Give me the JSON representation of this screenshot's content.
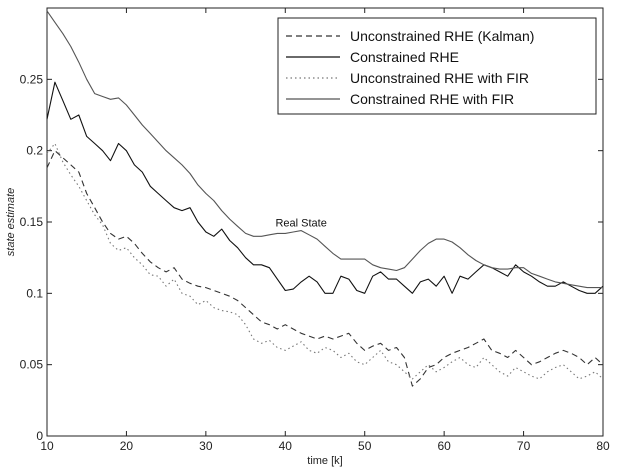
{
  "chart_data": {
    "type": "line",
    "xlabel": "time [k]",
    "ylabel": "state estimate",
    "xlim": [
      10,
      80
    ],
    "ylim": [
      0,
      0.3
    ],
    "xticks": [
      "10",
      "20",
      "30",
      "40",
      "50",
      "60",
      "70",
      "80"
    ],
    "yticks": [
      "0",
      "0.05",
      "0.1",
      "0.15",
      "0.2",
      "0.25"
    ],
    "grid": false,
    "legend_position": "top-right",
    "annotation": {
      "text": "Real State",
      "x": 42,
      "y": 0.147
    },
    "series": [
      {
        "name": "Unconstrained RHE (Kalman)",
        "style": "dashed",
        "color": "#333333",
        "x": [
          10,
          11,
          12,
          13,
          14,
          15,
          16,
          17,
          18,
          19,
          20,
          21,
          22,
          23,
          24,
          25,
          26,
          27,
          28,
          29,
          30,
          31,
          32,
          33,
          34,
          35,
          36,
          37,
          38,
          39,
          40,
          41,
          42,
          43,
          44,
          45,
          46,
          47,
          48,
          49,
          50,
          51,
          52,
          53,
          54,
          55,
          56,
          57,
          58,
          59,
          60,
          61,
          62,
          63,
          64,
          65,
          66,
          67,
          68,
          69,
          70,
          71,
          72,
          73,
          74,
          75,
          76,
          77,
          78,
          79,
          80
        ],
        "y": [
          0.188,
          0.2,
          0.195,
          0.19,
          0.185,
          0.17,
          0.16,
          0.15,
          0.142,
          0.138,
          0.14,
          0.135,
          0.128,
          0.122,
          0.118,
          0.115,
          0.118,
          0.11,
          0.107,
          0.105,
          0.104,
          0.102,
          0.1,
          0.098,
          0.095,
          0.09,
          0.085,
          0.08,
          0.078,
          0.075,
          0.078,
          0.075,
          0.072,
          0.07,
          0.068,
          0.07,
          0.068,
          0.07,
          0.072,
          0.065,
          0.06,
          0.063,
          0.065,
          0.06,
          0.062,
          0.055,
          0.035,
          0.04,
          0.048,
          0.05,
          0.055,
          0.058,
          0.06,
          0.062,
          0.065,
          0.068,
          0.06,
          0.058,
          0.055,
          0.06,
          0.055,
          0.05,
          0.052,
          0.055,
          0.058,
          0.06,
          0.058,
          0.055,
          0.05,
          0.055,
          0.05
        ]
      },
      {
        "name": "Constrained RHE",
        "style": "solid",
        "color": "#111111",
        "x": [
          10,
          11,
          12,
          13,
          14,
          15,
          16,
          17,
          18,
          19,
          20,
          21,
          22,
          23,
          24,
          25,
          26,
          27,
          28,
          29,
          30,
          31,
          32,
          33,
          34,
          35,
          36,
          37,
          38,
          39,
          40,
          41,
          42,
          43,
          44,
          45,
          46,
          47,
          48,
          49,
          50,
          51,
          52,
          53,
          54,
          55,
          56,
          57,
          58,
          59,
          60,
          61,
          62,
          63,
          64,
          65,
          66,
          67,
          68,
          69,
          70,
          71,
          72,
          73,
          74,
          75,
          76,
          77,
          78,
          79,
          80
        ],
        "y": [
          0.222,
          0.248,
          0.235,
          0.222,
          0.225,
          0.21,
          0.205,
          0.2,
          0.193,
          0.205,
          0.2,
          0.19,
          0.185,
          0.175,
          0.17,
          0.165,
          0.16,
          0.158,
          0.16,
          0.15,
          0.143,
          0.14,
          0.145,
          0.137,
          0.132,
          0.125,
          0.12,
          0.12,
          0.118,
          0.11,
          0.102,
          0.103,
          0.108,
          0.112,
          0.108,
          0.1,
          0.1,
          0.112,
          0.11,
          0.102,
          0.1,
          0.112,
          0.115,
          0.11,
          0.11,
          0.105,
          0.1,
          0.108,
          0.11,
          0.105,
          0.112,
          0.1,
          0.112,
          0.11,
          0.115,
          0.12,
          0.118,
          0.115,
          0.112,
          0.12,
          0.115,
          0.112,
          0.108,
          0.105,
          0.105,
          0.108,
          0.105,
          0.102,
          0.1,
          0.1,
          0.105
        ]
      },
      {
        "name": "Unconstrained RHE with FIR",
        "style": "dotted",
        "color": "#777777",
        "x": [
          10,
          11,
          12,
          13,
          14,
          15,
          16,
          17,
          18,
          19,
          20,
          21,
          22,
          23,
          24,
          25,
          26,
          27,
          28,
          29,
          30,
          31,
          32,
          33,
          34,
          35,
          36,
          37,
          38,
          39,
          40,
          41,
          42,
          43,
          44,
          45,
          46,
          47,
          48,
          49,
          50,
          51,
          52,
          53,
          54,
          55,
          56,
          57,
          58,
          59,
          60,
          61,
          62,
          63,
          64,
          65,
          66,
          67,
          68,
          69,
          70,
          71,
          72,
          73,
          74,
          75,
          76,
          77,
          78,
          79,
          80
        ],
        "y": [
          0.198,
          0.205,
          0.192,
          0.183,
          0.175,
          0.165,
          0.155,
          0.148,
          0.135,
          0.13,
          0.132,
          0.125,
          0.12,
          0.113,
          0.112,
          0.105,
          0.11,
          0.1,
          0.098,
          0.092,
          0.095,
          0.09,
          0.088,
          0.087,
          0.085,
          0.078,
          0.068,
          0.065,
          0.067,
          0.062,
          0.06,
          0.063,
          0.066,
          0.06,
          0.058,
          0.062,
          0.06,
          0.055,
          0.058,
          0.052,
          0.05,
          0.055,
          0.06,
          0.052,
          0.05,
          0.045,
          0.04,
          0.045,
          0.05,
          0.045,
          0.048,
          0.052,
          0.055,
          0.05,
          0.048,
          0.055,
          0.05,
          0.045,
          0.042,
          0.048,
          0.045,
          0.042,
          0.04,
          0.045,
          0.048,
          0.05,
          0.045,
          0.04,
          0.042,
          0.045,
          0.04
        ]
      },
      {
        "name": "Constrained RHE with FIR",
        "style": "solid",
        "color": "#555555",
        "x": [
          10,
          11,
          12,
          13,
          14,
          15,
          16,
          17,
          18,
          19,
          20,
          21,
          22,
          23,
          24,
          25,
          26,
          27,
          28,
          29,
          30,
          31,
          32,
          33,
          34,
          35,
          36,
          37,
          38,
          39,
          40,
          41,
          42,
          43,
          44,
          45,
          46,
          47,
          48,
          49,
          50,
          51,
          52,
          53,
          54,
          55,
          56,
          57,
          58,
          59,
          60,
          61,
          62,
          63,
          64,
          65,
          66,
          67,
          68,
          69,
          70,
          71,
          72,
          73,
          74,
          75,
          76,
          77,
          78,
          79,
          80
        ],
        "y": [
          0.298,
          0.29,
          0.282,
          0.273,
          0.262,
          0.25,
          0.24,
          0.238,
          0.236,
          0.237,
          0.232,
          0.225,
          0.218,
          0.212,
          0.206,
          0.2,
          0.195,
          0.19,
          0.184,
          0.176,
          0.17,
          0.165,
          0.158,
          0.152,
          0.147,
          0.142,
          0.14,
          0.14,
          0.141,
          0.142,
          0.142,
          0.143,
          0.144,
          0.141,
          0.138,
          0.133,
          0.128,
          0.124,
          0.124,
          0.124,
          0.124,
          0.12,
          0.118,
          0.117,
          0.116,
          0.118,
          0.124,
          0.13,
          0.135,
          0.138,
          0.138,
          0.136,
          0.132,
          0.127,
          0.123,
          0.12,
          0.118,
          0.117,
          0.117,
          0.118,
          0.118,
          0.114,
          0.112,
          0.11,
          0.108,
          0.107,
          0.106,
          0.105,
          0.104,
          0.104,
          0.104
        ]
      }
    ]
  }
}
